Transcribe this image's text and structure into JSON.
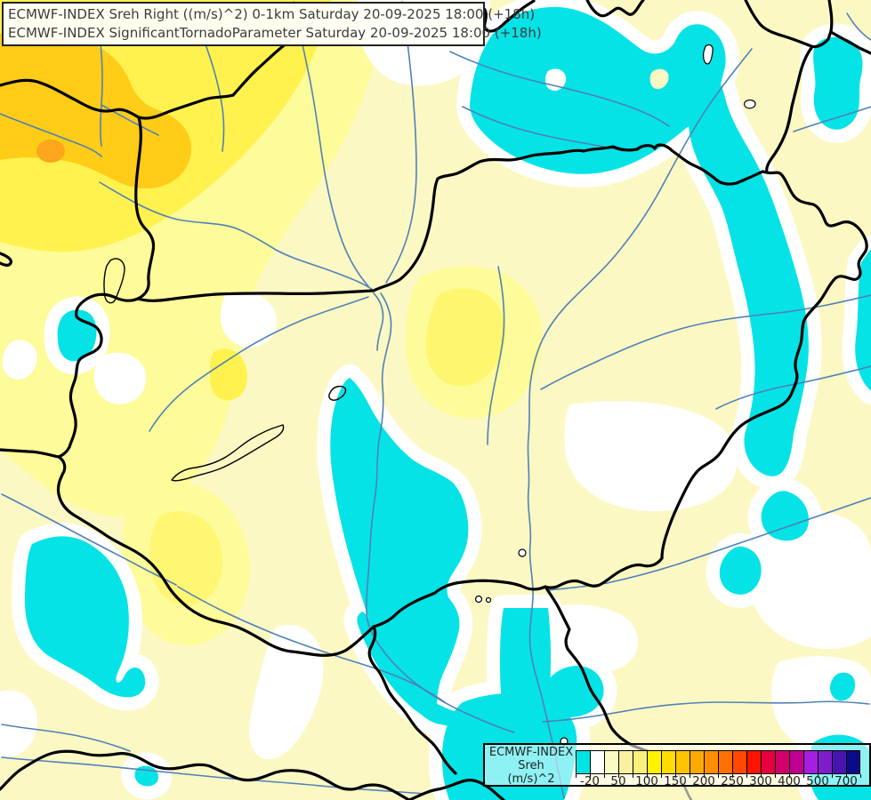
{
  "title_box": {
    "line1": "ECMWF-INDEX Sreh Right ((m/s)^2) 0-1km Saturday 20-09-2025 18:00 (+18h)",
    "line2": "ECMWF-INDEX SignificantTornadoParameter Saturday 20-09-2025 18:00 (+18h)"
  },
  "legend": {
    "title_line1": "ECMWF-INDEX",
    "title_line2": "Sreh",
    "title_line3": "(m/s)^2",
    "tick_labels": [
      "-20",
      "50",
      "100",
      "150",
      "200",
      "250",
      "300",
      "400",
      "500",
      "700"
    ],
    "labeled_boundaries": [
      1,
      3,
      5,
      7,
      9,
      11,
      13,
      15,
      17,
      19
    ],
    "swatch_colors": [
      "#00E4E4",
      "#FFFFFF",
      "#FAFAC3",
      "#F8F2A0",
      "#FAF07D",
      "#FFF200",
      "#FFDC00",
      "#FFC400",
      "#FFAA00",
      "#FF8E00",
      "#FF7000",
      "#FF4800",
      "#FF1400",
      "#E60040",
      "#D4006A",
      "#C00092",
      "#A61FE0",
      "#7E1DCB",
      "#4A13AE",
      "#0B0B8A"
    ]
  },
  "map": {
    "description": "ECMWF storm-relative-helicity shaded weather map over Hungary and neighbouring countries",
    "colors": {
      "base": "#FCF8C4",
      "yellow_light": "#FEFB9A",
      "yellow": "#FFF24E",
      "gold": "#FFCC17",
      "orange": "#FFA51E",
      "cyan": "#05E3E6",
      "river": "#4F81B8",
      "river_gray": "#999999",
      "border": "#000000"
    }
  }
}
